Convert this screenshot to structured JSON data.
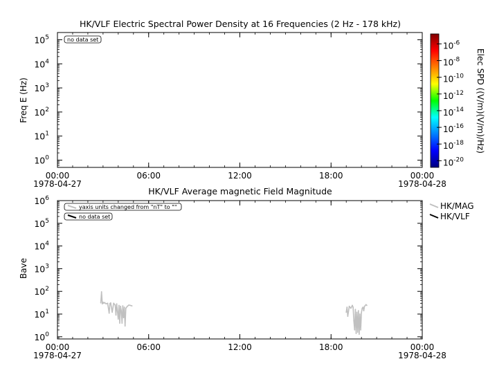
{
  "chart_data": [
    {
      "type": "heatmap",
      "title": "HK/VLF  Electric Spectral Power Density at 16 Frequencies (2 Hz - 178 kHz)",
      "ylabel": "Freq E (Hz)",
      "yscale": "log",
      "ylim": [
        0.5,
        200000
      ],
      "yticks": [
        {
          "v": 1,
          "label": "10",
          "exp": "0"
        },
        {
          "v": 10,
          "label": "10",
          "exp": "1"
        },
        {
          "v": 100,
          "label": "10",
          "exp": "2"
        },
        {
          "v": 1000,
          "label": "10",
          "exp": "3"
        },
        {
          "v": 10000,
          "label": "10",
          "exp": "4"
        },
        {
          "v": 100000,
          "label": "10",
          "exp": "5"
        }
      ],
      "xlim": [
        0,
        24
      ],
      "xticks": [
        {
          "v": 0,
          "label": "00:00",
          "date": "1978-04-27"
        },
        {
          "v": 6,
          "label": "06:00",
          "date": ""
        },
        {
          "v": 12,
          "label": "12:00",
          "date": ""
        },
        {
          "v": 18,
          "label": "18:00",
          "date": ""
        },
        {
          "v": 24,
          "label": "00:00",
          "date": "1978-04-28"
        }
      ],
      "annotation": "no data set",
      "colorbar": {
        "label": "Elec SPD ((V/m)(V/m)/Hz)",
        "scale": "log",
        "range_exp": [
          -20.8,
          -4.8
        ],
        "ticks": [
          {
            "exp": -6,
            "label": "10",
            "sup": "-6"
          },
          {
            "exp": -8,
            "label": "10",
            "sup": "-8"
          },
          {
            "exp": -10,
            "label": "10",
            "sup": "-10"
          },
          {
            "exp": -12,
            "label": "10",
            "sup": "-12"
          },
          {
            "exp": -14,
            "label": "10",
            "sup": "-14"
          },
          {
            "exp": -16,
            "label": "10",
            "sup": "-16"
          },
          {
            "exp": -18,
            "label": "10",
            "sup": "-18"
          },
          {
            "exp": -20,
            "label": "10",
            "sup": "-20"
          }
        ]
      }
    },
    {
      "type": "line",
      "title": "HK/VLF  Average magnetic Field Magnitude",
      "ylabel": "Bave",
      "yscale": "log",
      "ylim": [
        0.8,
        1000000
      ],
      "yticks": [
        {
          "v": 1,
          "label": "10",
          "exp": "0"
        },
        {
          "v": 10,
          "label": "10",
          "exp": "1"
        },
        {
          "v": 100,
          "label": "10",
          "exp": "2"
        },
        {
          "v": 1000,
          "label": "10",
          "exp": "3"
        },
        {
          "v": 10000,
          "label": "10",
          "exp": "4"
        },
        {
          "v": 100000,
          "label": "10",
          "exp": "5"
        },
        {
          "v": 1000000,
          "label": "10",
          "exp": "6"
        }
      ],
      "xlim": [
        0,
        24
      ],
      "xticks": [
        {
          "v": 0,
          "label": "00:00",
          "date": "1978-04-27"
        },
        {
          "v": 6,
          "label": "06:00",
          "date": ""
        },
        {
          "v": 12,
          "label": "12:00",
          "date": ""
        },
        {
          "v": 18,
          "label": "18:00",
          "date": ""
        },
        {
          "v": 24,
          "label": "00:00",
          "date": "1978-04-28"
        }
      ],
      "annotations": [
        "yaxis units changed from \"nT\" to \"\"",
        "no data set"
      ],
      "legend_position": "right",
      "series": [
        {
          "name": "HK/MAG",
          "color": "#c0c0c0",
          "x": [
            2.85,
            2.9,
            2.95,
            3.0,
            3.05,
            3.1,
            3.2,
            3.3,
            3.4,
            3.45,
            3.5,
            3.6,
            3.7,
            3.8,
            3.85,
            3.9,
            4.0,
            4.05,
            4.1,
            4.15,
            4.2,
            4.25,
            4.3,
            4.35,
            4.4,
            4.45,
            4.5,
            4.6,
            4.7,
            4.8,
            4.9
          ],
          "values": [
            31,
            95,
            28,
            33,
            30,
            32,
            28,
            30,
            11,
            29,
            31,
            12,
            30,
            25,
            9,
            28,
            6,
            24,
            4,
            22,
            14,
            4,
            23,
            7,
            20,
            3,
            18,
            22,
            25,
            24,
            23
          ]
        },
        {
          "name": "HK/VLF",
          "color": "#000000",
          "x": [],
          "values": []
        },
        {
          "name": "HK/MAG",
          "color": "#c0c0c0",
          "x": [
            19.0,
            19.05,
            19.1,
            19.2,
            19.3,
            19.4,
            19.45,
            19.5,
            19.55,
            19.6,
            19.65,
            19.7,
            19.75,
            19.8,
            19.85,
            19.9,
            19.95,
            20.0,
            20.05,
            20.1,
            20.15,
            20.2,
            20.3,
            20.35
          ],
          "values": [
            12,
            20,
            8,
            22,
            18,
            24,
            20,
            5,
            2,
            16,
            1.4,
            12,
            1.6,
            14,
            1.3,
            10,
            2,
            12,
            18,
            20,
            14,
            22,
            26,
            24
          ]
        }
      ]
    }
  ]
}
